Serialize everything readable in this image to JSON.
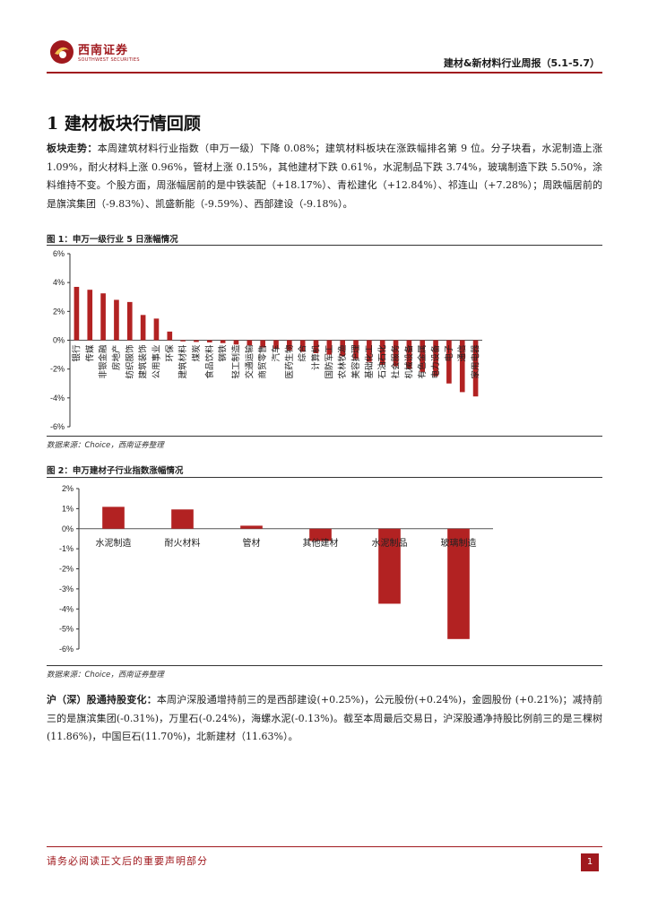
{
  "header": {
    "logo_cn": "西南证券",
    "logo_en": "SOUTHWEST SECURITIES",
    "report_title": "建材&新材料行业周报（5.1-5.7）",
    "brand_color": "#a0191e"
  },
  "section": {
    "title": "1 建材板块行情回顾"
  },
  "para1": {
    "lead": "板块走势：",
    "body": "本周建筑材料行业指数（申万一级）下降 0.08%；建筑材料板块在涨跌幅排名第 9 位。分子块看，水泥制造上涨 1.09%，耐火材料上涨 0.96%，管材上涨 0.15%，其他建材下跌 0.61%，水泥制品下跌 3.74%，玻璃制造下跌 5.50%，涂料维持不变。个股方面，周涨幅居前的是中铁装配（+18.17%）、青松建化（+12.84%）、祁连山（+7.28%）；周跌幅居前的是旗滨集团（-9.83%）、凯盛新能（-9.59%）、西部建设（-9.18%）。"
  },
  "figure1": {
    "title": "图 1：申万一级行业 5 日涨幅情况",
    "source": "数据来源：Choice，西南证券整理"
  },
  "figure2": {
    "title": "图 2：申万建材子行业指数涨幅情况",
    "source": "数据来源：Choice，西南证券整理"
  },
  "chart_data": [
    {
      "type": "bar",
      "title": "",
      "ylim": [
        -6,
        6
      ],
      "yticks": [
        6,
        4,
        2,
        0,
        -2,
        -4,
        -6
      ],
      "ytick_format": "%",
      "bar_color": "#b22222",
      "categories": [
        "银行",
        "传媒",
        "非银金融",
        "房地产",
        "纺织服饰",
        "建筑装饰",
        "公用事业",
        "环保",
        "建筑材料",
        "煤炭",
        "食品饮料",
        "钢铁",
        "轻工制造",
        "交通运输",
        "商贸零售",
        "汽车",
        "医药生物",
        "综合",
        "计算机",
        "国防军工",
        "农林牧渔",
        "美容护理",
        "基础化工",
        "石油石化",
        "社会服务",
        "机械设备",
        "有色金属",
        "电力设备",
        "电子",
        "通信",
        "家用电器"
      ],
      "values": [
        3.7,
        3.5,
        3.25,
        2.8,
        2.65,
        1.75,
        1.5,
        0.6,
        -0.08,
        -0.12,
        -0.15,
        -0.2,
        -0.3,
        -0.35,
        -0.5,
        -0.6,
        -0.7,
        -0.8,
        -0.9,
        -1.0,
        -1.1,
        -1.3,
        -1.5,
        -1.7,
        -1.8,
        -2.0,
        -2.2,
        -2.5,
        -3.0,
        -3.6,
        -3.9
      ]
    },
    {
      "type": "bar",
      "title": "",
      "ylim": [
        -6,
        2
      ],
      "yticks": [
        2,
        1,
        0,
        -1,
        -2,
        -3,
        -4,
        -5,
        -6
      ],
      "ytick_format": "%",
      "bar_color": "#b22222",
      "categories": [
        "水泥制造",
        "耐火材料",
        "管材",
        "其他建材",
        "水泥制品",
        "玻璃制造"
      ],
      "values": [
        1.09,
        0.96,
        0.15,
        -0.61,
        -3.74,
        -5.5
      ]
    }
  ],
  "para2": {
    "lead": "沪（深）股通持股变化：",
    "body": "本周沪深股通增持前三的是西部建设(+0.25%)，公元股份(+0.24%)，金圆股份 (+0.21%)；减持前三的是旗滨集团(-0.31%)，万里石(-0.24%)，海螺水泥(-0.13%)。截至本周最后交易日，沪深股通净持股比例前三的是三棵树(11.86%)，中国巨石(11.70%)，北新建材（11.63%）。"
  },
  "footer": {
    "disclaimer": "请务必阅读正文后的重要声明部分",
    "page_number": "1"
  }
}
